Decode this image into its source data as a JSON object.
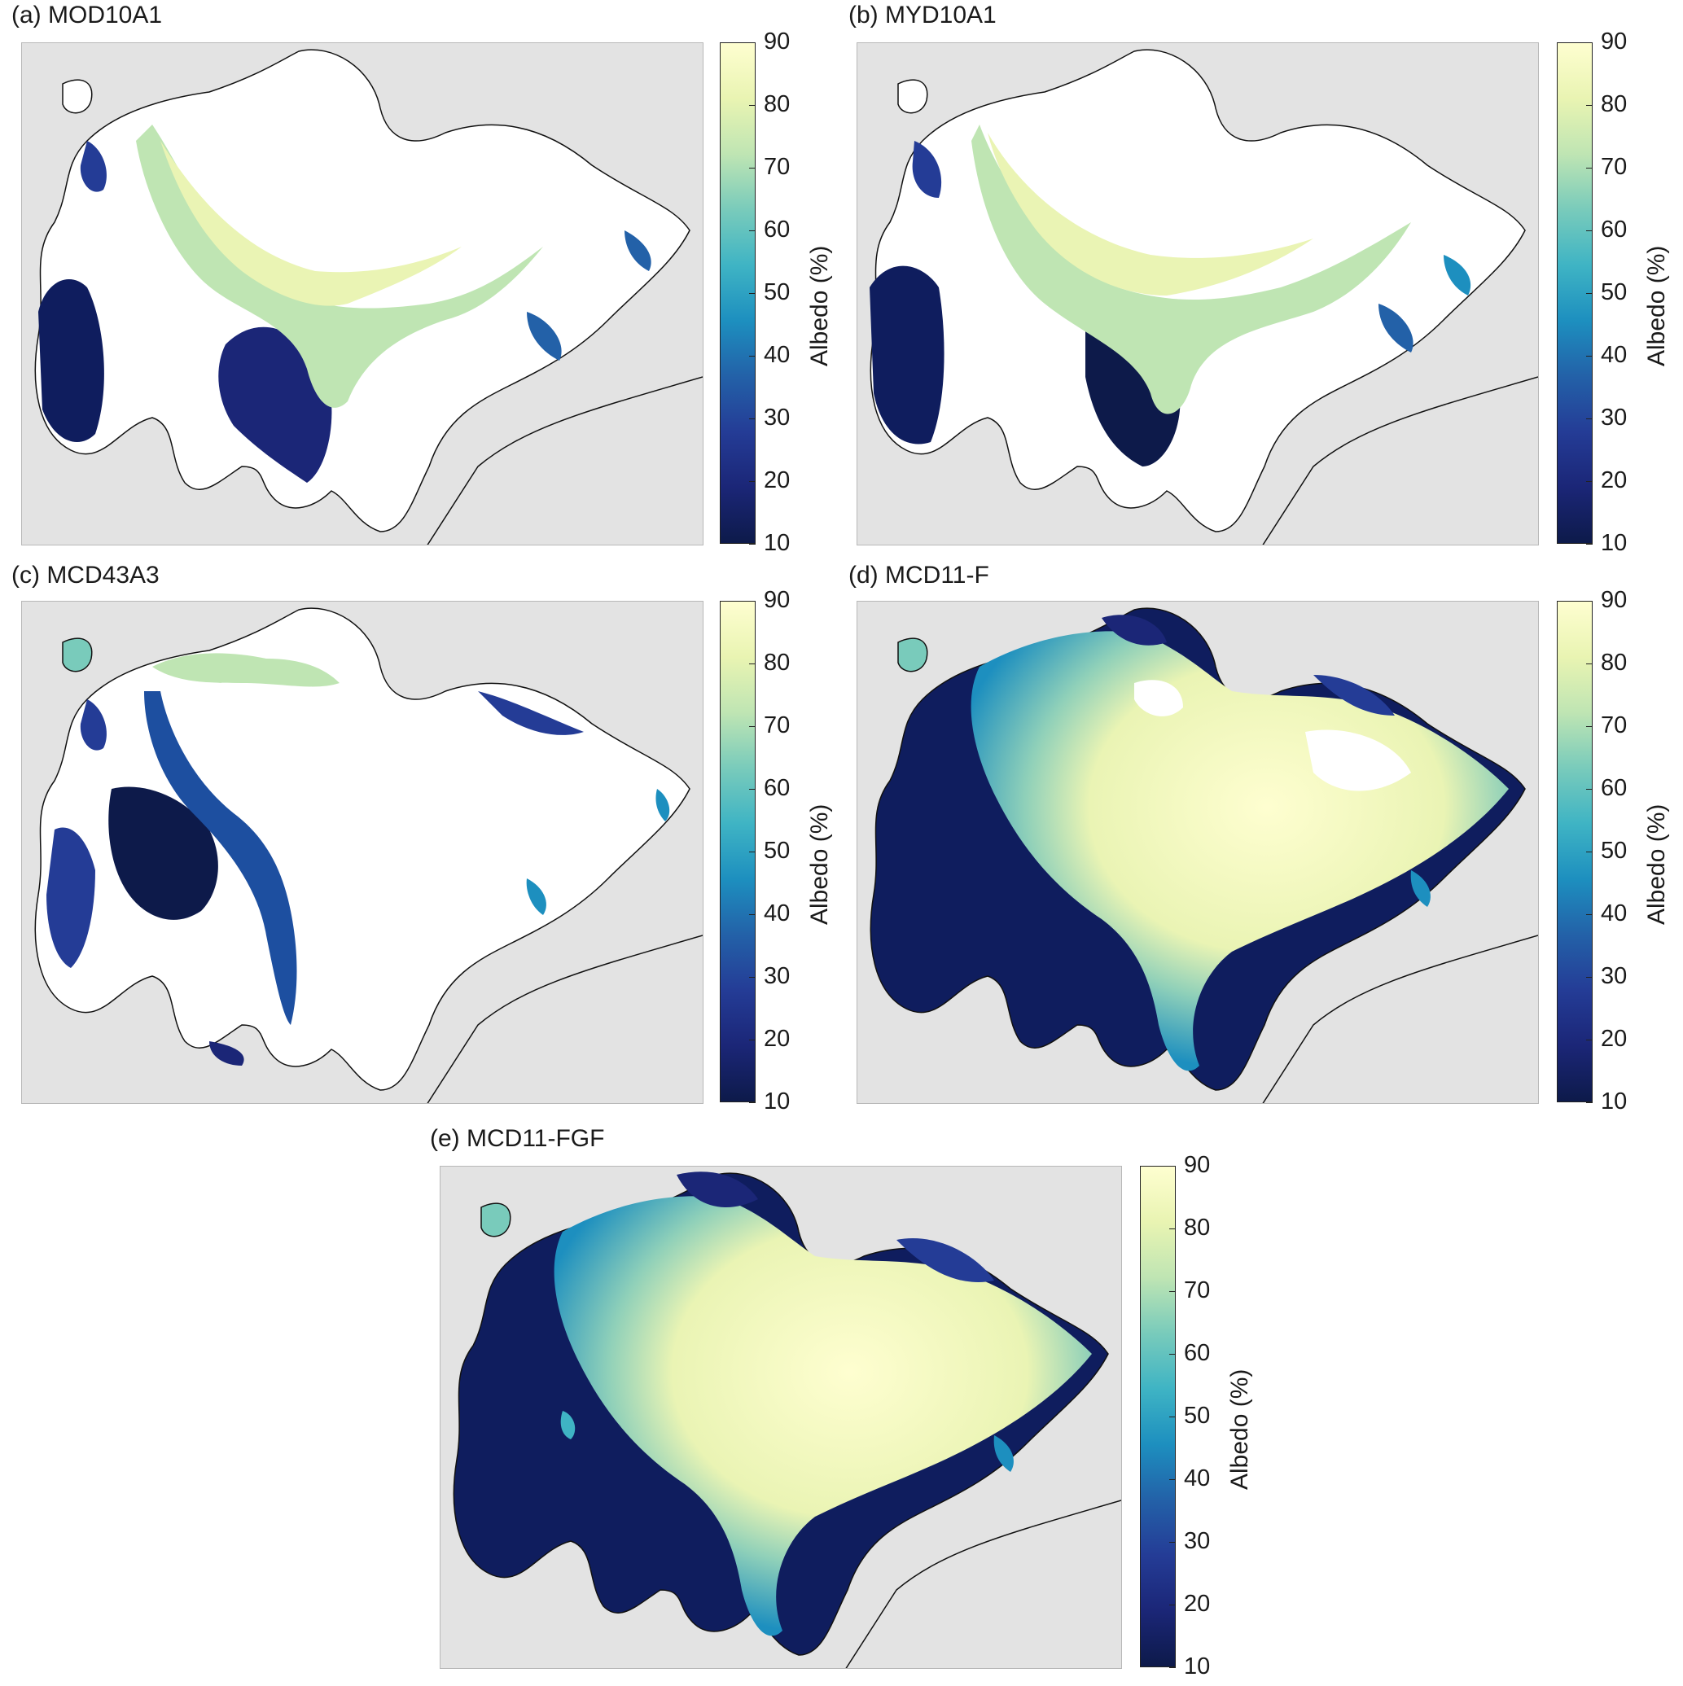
{
  "colormap": {
    "stops": [
      "#fefed0",
      "#e9f4b2",
      "#bfe5b3",
      "#79cbbb",
      "#3fb4c4",
      "#1d8fbf",
      "#2361a8",
      "#243c96",
      "#1b2677",
      "#0d1a4a"
    ],
    "land_color": "#e3e3e3",
    "no_data_color": "#ffffff"
  },
  "colorbar": {
    "label": "Albedo (%)",
    "ticks": [
      "90",
      "80",
      "70",
      "60",
      "50",
      "40",
      "30",
      "20",
      "10"
    ],
    "range": [
      10,
      90
    ]
  },
  "panels": [
    {
      "title": "(a) MOD10A1",
      "coverage": "sparse"
    },
    {
      "title": "(b) MYD10A1",
      "coverage": "sparse"
    },
    {
      "title": "(c) MCD43A3",
      "coverage": "sparse"
    },
    {
      "title": "(d) MCD11-F",
      "coverage": "dense"
    },
    {
      "title": "(e) MCD11-FGF",
      "coverage": "full"
    }
  ]
}
